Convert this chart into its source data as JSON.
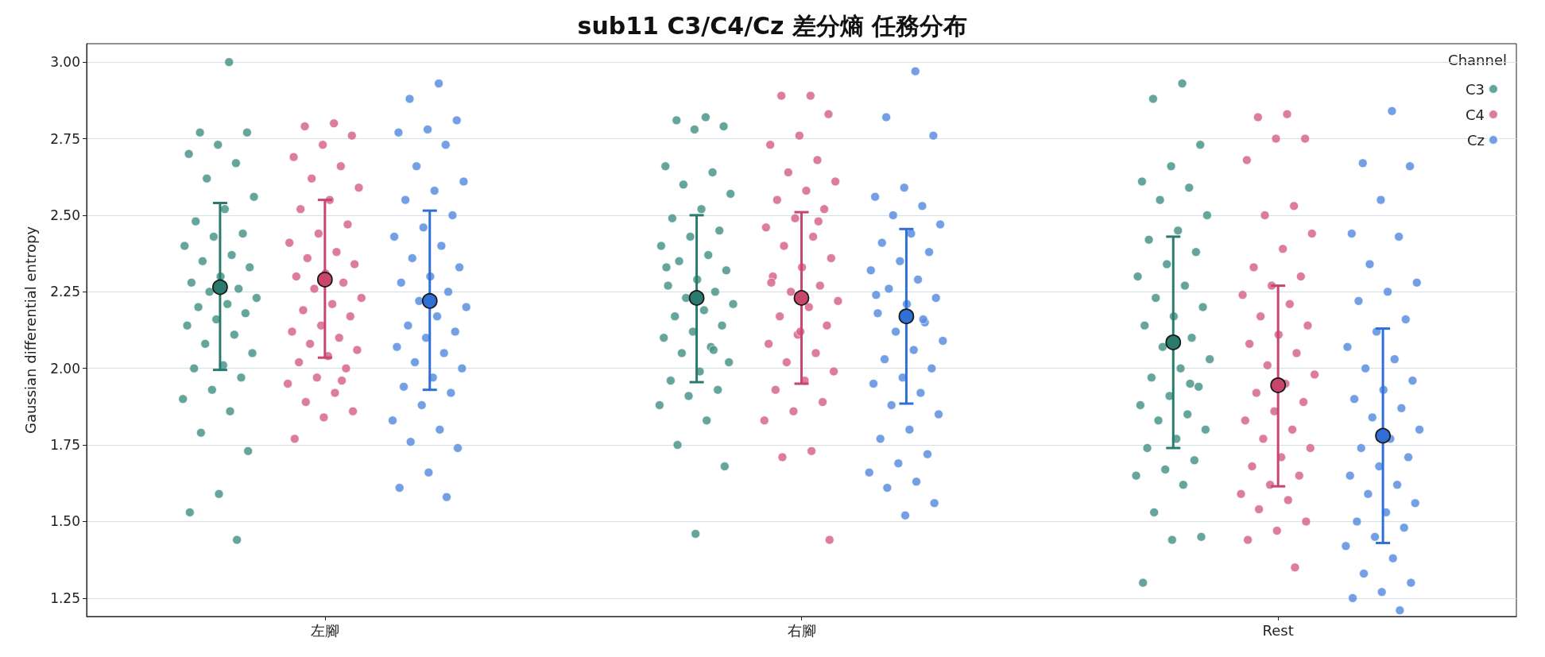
{
  "chart_data": {
    "type": "scatter",
    "title": "sub11 C3/C4/Cz 差分熵 任務分布",
    "ylabel": "Gaussian differential entropy",
    "legend_title": "Channel",
    "legend": "top right",
    "grid": "y",
    "marker": "circle",
    "categories": [
      "左腳",
      "右腳",
      "Rest"
    ],
    "ylim": [
      1.19,
      3.06
    ],
    "yticks": [
      {
        "value": 1.25,
        "label": "1.25"
      },
      {
        "value": 1.5,
        "label": "1.50"
      },
      {
        "value": 1.75,
        "label": "1.75"
      },
      {
        "value": 2,
        "label": "2.00"
      },
      {
        "value": 2.25,
        "label": "2.25"
      },
      {
        "value": 2.5,
        "label": "2.50"
      },
      {
        "value": 2.75,
        "label": "2.75"
      },
      {
        "value": 3,
        "label": "3.00"
      }
    ],
    "series": [
      {
        "name": "C3",
        "color": "#4a9589",
        "x": [
          "左腳",
          "左腳",
          "左腳",
          "左腳",
          "左腳",
          "左腳",
          "左腳",
          "左腳",
          "左腳",
          "左腳",
          "左腳",
          "左腳",
          "左腳",
          "左腳",
          "左腳",
          "左腳",
          "左腳",
          "左腳",
          "左腳",
          "左腳",
          "左腳",
          "左腳",
          "左腳",
          "左腳",
          "左腳",
          "左腳",
          "左腳",
          "左腳",
          "左腳",
          "左腳",
          "左腳",
          "左腳",
          "左腳",
          "左腳",
          "左腳",
          "左腳",
          "左腳",
          "左腳",
          "左腳",
          "左腳",
          "右腳",
          "右腳",
          "右腳",
          "右腳",
          "右腳",
          "右腳",
          "右腳",
          "右腳",
          "右腳",
          "右腳",
          "右腳",
          "右腳",
          "右腳",
          "右腳",
          "右腳",
          "右腳",
          "右腳",
          "右腳",
          "右腳",
          "右腳",
          "右腳",
          "右腳",
          "右腳",
          "右腳",
          "右腳",
          "右腳",
          "右腳",
          "右腳",
          "右腳",
          "右腳",
          "右腳",
          "右腳",
          "右腳",
          "右腳",
          "右腳",
          "右腳",
          "右腳",
          "右腳",
          "右腳",
          "右腳",
          "Rest",
          "Rest",
          "Rest",
          "Rest",
          "Rest",
          "Rest",
          "Rest",
          "Rest",
          "Rest",
          "Rest",
          "Rest",
          "Rest",
          "Rest",
          "Rest",
          "Rest",
          "Rest",
          "Rest",
          "Rest",
          "Rest",
          "Rest",
          "Rest",
          "Rest",
          "Rest",
          "Rest",
          "Rest",
          "Rest",
          "Rest",
          "Rest",
          "Rest",
          "Rest",
          "Rest",
          "Rest",
          "Rest",
          "Rest",
          "Rest",
          "Rest",
          "Rest",
          "Rest",
          "Rest",
          "Rest"
        ],
        "values": [
          3.0,
          2.77,
          2.77,
          2.73,
          2.7,
          2.67,
          2.62,
          2.56,
          2.52,
          2.48,
          2.44,
          2.43,
          2.4,
          2.37,
          2.35,
          2.33,
          2.3,
          2.28,
          2.26,
          2.25,
          2.23,
          2.21,
          2.2,
          2.18,
          2.16,
          2.14,
          2.11,
          2.08,
          2.05,
          2.01,
          2.0,
          1.97,
          1.93,
          1.9,
          1.86,
          1.79,
          1.73,
          1.59,
          1.53,
          1.44,
          2.82,
          2.81,
          2.79,
          2.78,
          2.66,
          2.64,
          2.6,
          2.57,
          2.52,
          2.49,
          2.45,
          2.43,
          2.4,
          2.37,
          2.35,
          2.32,
          2.29,
          2.27,
          2.25,
          2.23,
          2.21,
          2.19,
          2.17,
          2.14,
          2.12,
          2.1,
          2.07,
          2.05,
          2.02,
          1.99,
          1.96,
          1.93,
          1.91,
          1.88,
          1.83,
          1.75,
          1.68,
          1.46,
          2.33,
          2.06,
          2.93,
          2.88,
          2.73,
          2.66,
          2.61,
          2.59,
          2.55,
          2.5,
          2.45,
          2.42,
          2.38,
          2.34,
          2.3,
          2.27,
          2.23,
          2.2,
          2.17,
          2.14,
          2.1,
          2.07,
          2.03,
          2.0,
          1.97,
          1.94,
          1.91,
          1.88,
          1.85,
          1.83,
          1.8,
          1.77,
          1.74,
          1.7,
          1.67,
          1.65,
          1.62,
          1.53,
          1.45,
          1.44,
          1.3,
          1.95
        ]
      },
      {
        "name": "C4",
        "color": "#d6668a",
        "x": [
          "左腳",
          "左腳",
          "左腳",
          "左腳",
          "左腳",
          "左腳",
          "左腳",
          "左腳",
          "左腳",
          "左腳",
          "左腳",
          "左腳",
          "左腳",
          "左腳",
          "左腳",
          "左腳",
          "左腳",
          "左腳",
          "左腳",
          "左腳",
          "左腳",
          "左腳",
          "左腳",
          "左腳",
          "左腳",
          "左腳",
          "左腳",
          "左腳",
          "左腳",
          "左腳",
          "左腳",
          "左腳",
          "左腳",
          "左腳",
          "左腳",
          "左腳",
          "左腳",
          "左腳",
          "左腳",
          "左腳",
          "右腳",
          "右腳",
          "右腳",
          "右腳",
          "右腳",
          "右腳",
          "右腳",
          "右腳",
          "右腳",
          "右腳",
          "右腳",
          "右腳",
          "右腳",
          "右腳",
          "右腳",
          "右腳",
          "右腳",
          "右腳",
          "右腳",
          "右腳",
          "右腳",
          "右腳",
          "右腳",
          "右腳",
          "右腳",
          "右腳",
          "右腳",
          "右腳",
          "右腳",
          "右腳",
          "右腳",
          "右腳",
          "右腳",
          "右腳",
          "右腳",
          "右腳",
          "右腳",
          "右腳",
          "右腳",
          "右腳",
          "Rest",
          "Rest",
          "Rest",
          "Rest",
          "Rest",
          "Rest",
          "Rest",
          "Rest",
          "Rest",
          "Rest",
          "Rest",
          "Rest",
          "Rest",
          "Rest",
          "Rest",
          "Rest",
          "Rest",
          "Rest",
          "Rest",
          "Rest",
          "Rest",
          "Rest",
          "Rest",
          "Rest",
          "Rest",
          "Rest",
          "Rest",
          "Rest",
          "Rest",
          "Rest",
          "Rest",
          "Rest",
          "Rest",
          "Rest",
          "Rest",
          "Rest",
          "Rest",
          "Rest",
          "Rest",
          "Rest"
        ],
        "values": [
          2.8,
          2.79,
          2.76,
          2.73,
          2.69,
          2.66,
          2.62,
          2.59,
          2.55,
          2.52,
          2.47,
          2.44,
          2.41,
          2.38,
          2.36,
          2.34,
          2.31,
          2.3,
          2.28,
          2.26,
          2.23,
          2.21,
          2.19,
          2.17,
          2.14,
          2.12,
          2.1,
          2.08,
          2.06,
          2.04,
          2.02,
          2.0,
          1.97,
          1.95,
          1.92,
          1.89,
          1.86,
          1.84,
          1.77,
          1.96,
          2.89,
          2.89,
          2.83,
          2.76,
          2.73,
          2.68,
          2.64,
          2.61,
          2.58,
          2.55,
          2.52,
          2.49,
          2.46,
          2.43,
          2.4,
          2.36,
          2.33,
          2.3,
          2.27,
          2.25,
          2.22,
          2.2,
          2.17,
          2.14,
          2.11,
          2.08,
          2.05,
          2.02,
          1.99,
          1.96,
          1.93,
          1.89,
          1.86,
          1.83,
          1.73,
          1.71,
          1.44,
          2.12,
          2.28,
          2.48,
          2.83,
          2.82,
          2.75,
          2.75,
          2.68,
          2.53,
          2.5,
          2.44,
          2.39,
          2.33,
          2.3,
          2.27,
          2.24,
          2.21,
          2.17,
          2.14,
          2.11,
          2.08,
          2.05,
          2.01,
          1.98,
          1.95,
          1.92,
          1.89,
          1.86,
          1.83,
          1.8,
          1.77,
          1.74,
          1.71,
          1.68,
          1.65,
          1.62,
          1.59,
          1.57,
          1.54,
          1.5,
          1.47,
          1.44,
          1.35
        ]
      },
      {
        "name": "Cz",
        "color": "#5a8ee0",
        "x": [
          "左腳",
          "左腳",
          "左腳",
          "左腳",
          "左腳",
          "左腳",
          "左腳",
          "左腳",
          "左腳",
          "左腳",
          "左腳",
          "左腳",
          "左腳",
          "左腳",
          "左腳",
          "左腳",
          "左腳",
          "左腳",
          "左腳",
          "左腳",
          "左腳",
          "左腳",
          "左腳",
          "左腳",
          "左腳",
          "左腳",
          "左腳",
          "左腳",
          "左腳",
          "左腳",
          "左腳",
          "左腳",
          "左腳",
          "左腳",
          "左腳",
          "左腳",
          "左腳",
          "左腳",
          "左腳",
          "左腳",
          "右腳",
          "右腳",
          "右腳",
          "右腳",
          "右腳",
          "右腳",
          "右腳",
          "右腳",
          "右腳",
          "右腳",
          "右腳",
          "右腳",
          "右腳",
          "右腳",
          "右腳",
          "右腳",
          "右腳",
          "右腳",
          "右腳",
          "右腳",
          "右腳",
          "右腳",
          "右腳",
          "右腳",
          "右腳",
          "右腳",
          "右腳",
          "右腳",
          "右腳",
          "右腳",
          "右腳",
          "右腳",
          "右腳",
          "右腳",
          "右腳",
          "右腳",
          "右腳",
          "右腳",
          "右腳",
          "右腳",
          "Rest",
          "Rest",
          "Rest",
          "Rest",
          "Rest",
          "Rest",
          "Rest",
          "Rest",
          "Rest",
          "Rest",
          "Rest",
          "Rest",
          "Rest",
          "Rest",
          "Rest",
          "Rest",
          "Rest",
          "Rest",
          "Rest",
          "Rest",
          "Rest",
          "Rest",
          "Rest",
          "Rest",
          "Rest",
          "Rest",
          "Rest",
          "Rest",
          "Rest",
          "Rest",
          "Rest",
          "Rest",
          "Rest",
          "Rest",
          "Rest",
          "Rest",
          "Rest",
          "Rest",
          "Rest",
          "Rest"
        ],
        "values": [
          2.93,
          2.88,
          2.81,
          2.78,
          2.77,
          2.73,
          2.66,
          2.61,
          2.58,
          2.55,
          2.5,
          2.46,
          2.43,
          2.4,
          2.36,
          2.33,
          2.3,
          2.28,
          2.25,
          2.22,
          2.2,
          2.17,
          2.14,
          2.12,
          2.1,
          2.07,
          2.05,
          2.02,
          2.0,
          1.97,
          1.94,
          1.92,
          1.88,
          1.83,
          1.8,
          1.76,
          1.74,
          1.66,
          1.61,
          1.58,
          2.97,
          2.82,
          2.76,
          2.59,
          2.56,
          2.53,
          2.5,
          2.47,
          2.44,
          2.41,
          2.38,
          2.35,
          2.32,
          2.29,
          2.26,
          2.23,
          2.21,
          2.18,
          2.15,
          2.12,
          2.09,
          2.06,
          2.03,
          2.0,
          1.97,
          1.95,
          1.92,
          1.88,
          1.85,
          1.8,
          1.77,
          1.72,
          1.69,
          1.66,
          1.63,
          1.61,
          1.56,
          1.52,
          2.24,
          2.16,
          2.84,
          2.67,
          2.66,
          2.55,
          2.44,
          2.43,
          2.34,
          2.28,
          2.25,
          2.22,
          2.16,
          2.12,
          2.07,
          2.03,
          2.0,
          1.96,
          1.93,
          1.9,
          1.87,
          1.84,
          1.8,
          1.77,
          1.74,
          1.71,
          1.68,
          1.65,
          1.62,
          1.59,
          1.56,
          1.53,
          1.5,
          1.48,
          1.45,
          1.42,
          1.38,
          1.33,
          1.3,
          1.27,
          1.25,
          1.21
        ]
      },
      {
        "color": "#2a7a6e",
        "x": [
          "左腳",
          "右腳",
          "Rest"
        ],
        "values": [
          2.265,
          2.23,
          2.085
        ],
        "errors": [
          [
            1.995,
            2.54
          ],
          [
            1.955,
            2.5
          ],
          [
            1.74,
            2.43
          ]
        ]
      },
      {
        "color": "#c8456b",
        "x": [
          "左腳",
          "右腳",
          "Rest"
        ],
        "values": [
          2.29,
          2.23,
          1.945
        ],
        "errors": [
          [
            2.035,
            2.55
          ],
          [
            1.95,
            2.51
          ],
          [
            1.615,
            2.27
          ]
        ]
      },
      {
        "color": "#2f6fd6",
        "x": [
          "左腳",
          "右腳",
          "Rest"
        ],
        "values": [
          2.22,
          2.17,
          1.78
        ],
        "errors": [
          [
            1.93,
            2.515
          ],
          [
            1.885,
            2.455
          ],
          [
            1.43,
            2.13
          ]
        ]
      }
    ]
  }
}
